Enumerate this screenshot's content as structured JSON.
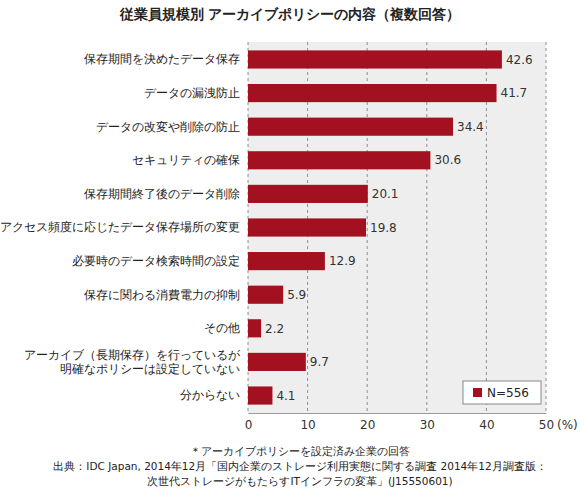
{
  "chart_data": {
    "type": "bar",
    "orientation": "horizontal",
    "title": "従業員規模別 アーカイブポリシーの内容（複数回答）",
    "xlabel": "(%)",
    "categories": [
      "保存期間を決めたデータ保存",
      "データの漏洩防止",
      "データの改変や削除の防止",
      "セキュリティの確保",
      "保存期間終了後のデータ削除",
      "アクセス頻度に応じたデータ保存場所の変更",
      "必要時のデータ検索時間の設定",
      "保存に関わる消費電力の抑制",
      "その他",
      "アーカイブ（長期保存）を行っているが\n明確なポリシーは設定していない",
      "分からない"
    ],
    "series": [
      {
        "name": "N=556",
        "color": "#a3101f",
        "values": [
          42.6,
          41.7,
          34.4,
          30.6,
          20.1,
          19.8,
          12.9,
          5.9,
          2.2,
          9.7,
          4.1
        ]
      }
    ],
    "xlim": [
      0,
      50
    ],
    "xticks": [
      0,
      10,
      20,
      30,
      40,
      50
    ],
    "grid": true,
    "data_labels": true,
    "legend": "lower right",
    "annotations": [
      "＊アーカイブポリシーを設定済み企業の回答",
      "出典：IDC Japan, 2014年12月「国内企業のストレージ利用実態に関する調査 2014年12月調査版：",
      "次世代ストレージがもたらすITインフラの変革」(J15550601)"
    ]
  }
}
